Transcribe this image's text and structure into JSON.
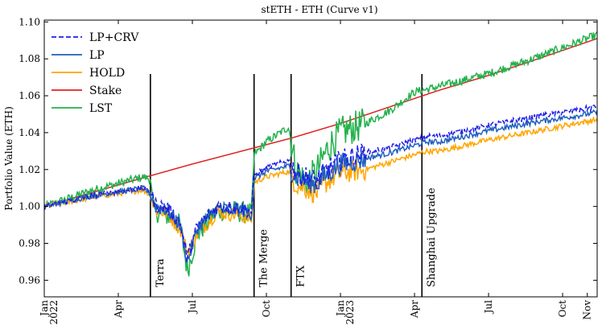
{
  "chart_data": {
    "type": "line",
    "title": "stETH - ETH (Curve v1)",
    "xlabel": "",
    "ylabel": "Portfolio Value (ETH)",
    "xlim": [
      0,
      22.4
    ],
    "ylim": [
      0.951,
      1.101
    ],
    "yticks": [
      "0.96",
      "0.98",
      "1.00",
      "1.02",
      "1.04",
      "1.06",
      "1.08",
      "1.10"
    ],
    "xticks": [
      {
        "month": 0,
        "lines": [
          "Jan",
          "2022"
        ]
      },
      {
        "month": 3,
        "lines": [
          "Apr"
        ]
      },
      {
        "month": 6,
        "lines": [
          "Jul"
        ]
      },
      {
        "month": 9,
        "lines": [
          "Oct"
        ]
      },
      {
        "month": 12,
        "lines": [
          "Jan",
          "2023"
        ]
      },
      {
        "month": 15,
        "lines": [
          "Apr"
        ]
      },
      {
        "month": 18,
        "lines": [
          "Jul"
        ]
      },
      {
        "month": 21,
        "lines": [
          "Oct"
        ]
      },
      {
        "month": 22,
        "lines": [
          "Nov"
        ]
      }
    ],
    "events": [
      {
        "label": "Terra",
        "month": 4.3
      },
      {
        "label": "The Merge",
        "month": 8.5
      },
      {
        "label": "FTX",
        "month": 10.0
      },
      {
        "label": "Shanghai Upgrade",
        "month": 15.3
      }
    ],
    "legend": {
      "position": "top-left",
      "entries": [
        {
          "name": "LP+CRV",
          "color": "#1f1fe6",
          "dashed": true
        },
        {
          "name": "LP",
          "color": "#1f5fbf",
          "dashed": false
        },
        {
          "name": "HOLD",
          "color": "#ffa500",
          "dashed": false
        },
        {
          "name": "Stake",
          "color": "#e02020",
          "dashed": false
        },
        {
          "name": "LST",
          "color": "#22b14c",
          "dashed": false
        }
      ]
    },
    "series": [
      {
        "name": "Stake",
        "color": "#e02020",
        "dashed": false,
        "x": [
          0,
          2,
          4,
          6,
          8,
          10,
          12,
          14,
          16,
          18,
          20,
          22.4
        ],
        "y": [
          1.0,
          1.0078,
          1.0155,
          1.023,
          1.03,
          1.037,
          1.045,
          1.054,
          1.063,
          1.071,
          1.08,
          1.091
        ]
      },
      {
        "name": "HOLD",
        "color": "#ffa500",
        "dashed": false,
        "x": [
          0,
          2,
          4,
          4.3,
          4.5,
          5,
          5.5,
          5.8,
          6.2,
          7,
          8,
          8.4,
          8.5,
          9,
          9.9,
          10.2,
          10.6,
          11,
          11.5,
          12,
          13,
          14,
          15,
          15.5,
          16,
          18,
          20,
          21.5,
          22.4
        ],
        "y": [
          1.0,
          1.005,
          1.009,
          1.006,
          0.998,
          0.996,
          0.988,
          0.975,
          0.985,
          0.997,
          0.995,
          0.993,
          1.013,
          1.016,
          1.019,
          1.012,
          1.01,
          1.007,
          1.014,
          1.018,
          1.02,
          1.024,
          1.028,
          1.03,
          1.03,
          1.036,
          1.041,
          1.045,
          1.047
        ]
      },
      {
        "name": "LP",
        "color": "#1f5fbf",
        "dashed": false,
        "x": [
          0,
          2,
          4,
          4.3,
          4.5,
          5,
          5.5,
          5.8,
          6.2,
          7,
          8,
          8.4,
          8.5,
          9,
          9.9,
          10.2,
          10.6,
          11,
          11.5,
          12,
          13,
          14,
          15,
          15.5,
          16,
          18,
          20,
          21.5,
          22.4
        ],
        "y": [
          1.0,
          1.006,
          1.01,
          1.007,
          1.0,
          0.998,
          0.99,
          0.97,
          0.988,
          0.999,
          0.998,
          0.996,
          1.015,
          1.019,
          1.022,
          1.016,
          1.014,
          1.012,
          1.018,
          1.023,
          1.026,
          1.029,
          1.033,
          1.035,
          1.035,
          1.041,
          1.046,
          1.049,
          1.051
        ]
      },
      {
        "name": "LP+CRV",
        "color": "#1f1fe6",
        "dashed": true,
        "x": [
          0,
          2,
          4,
          4.3,
          4.5,
          5,
          5.5,
          5.8,
          6.2,
          7,
          8,
          8.4,
          8.5,
          9,
          9.9,
          10.2,
          10.6,
          11,
          11.5,
          12,
          13,
          14,
          15,
          15.5,
          16,
          18,
          20,
          21.5,
          22.4
        ],
        "y": [
          1.0,
          1.006,
          1.01,
          1.008,
          1.001,
          0.999,
          0.991,
          0.972,
          0.989,
          1.0,
          0.999,
          0.997,
          1.017,
          1.021,
          1.025,
          1.018,
          1.016,
          1.014,
          1.02,
          1.025,
          1.029,
          1.032,
          1.036,
          1.038,
          1.038,
          1.044,
          1.049,
          1.052,
          1.054
        ]
      },
      {
        "name": "LST",
        "color": "#22b14c",
        "dashed": false,
        "x": [
          0,
          2,
          4,
          4.3,
          4.4,
          5,
          5.5,
          5.8,
          6.2,
          7,
          8,
          8.4,
          8.5,
          9,
          9.9,
          10.2,
          10.6,
          11,
          11.5,
          12,
          13,
          14,
          15,
          16,
          18,
          20,
          22.4
        ],
        "y": [
          1.0,
          1.009,
          1.016,
          1.015,
          0.998,
          0.995,
          0.99,
          0.965,
          0.985,
          0.998,
          0.997,
          0.996,
          1.028,
          1.035,
          1.043,
          1.02,
          1.013,
          1.018,
          1.032,
          1.04,
          1.045,
          1.052,
          1.062,
          1.065,
          1.072,
          1.081,
          1.093
        ]
      }
    ]
  }
}
